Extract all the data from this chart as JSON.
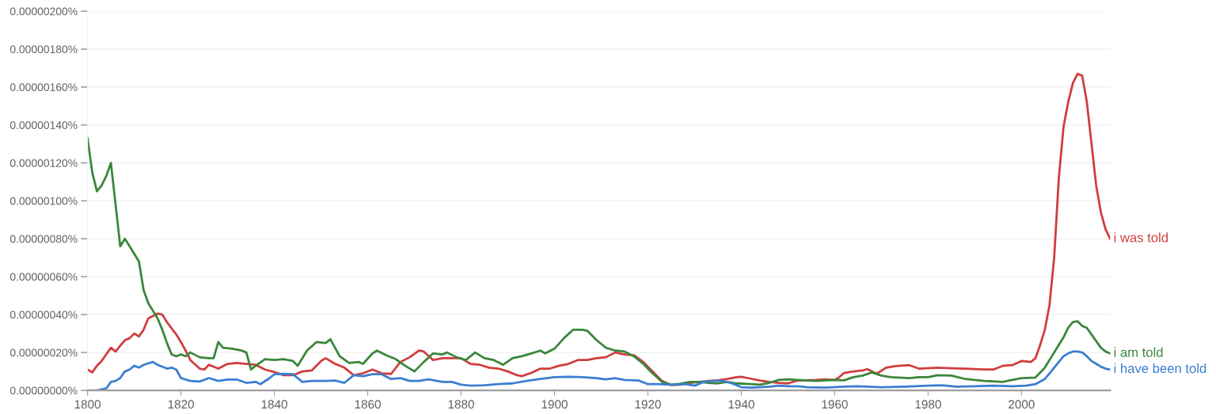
{
  "chart_data": {
    "type": "line",
    "xlim": [
      1800,
      2019
    ],
    "ylim": [
      0,
      2e-06
    ],
    "xticks": [
      1800,
      1820,
      1840,
      1860,
      1880,
      1900,
      1920,
      1940,
      1960,
      1980,
      2000
    ],
    "yticks": [
      {
        "value": 0,
        "label": "0.00000000%"
      },
      {
        "value": 2e-07,
        "label": "0.00000020%"
      },
      {
        "value": 4e-07,
        "label": "0.00000040%"
      },
      {
        "value": 6e-07,
        "label": "0.00000060%"
      },
      {
        "value": 8e-07,
        "label": "0.00000080%"
      },
      {
        "value": 1e-06,
        "label": "0.00000100%"
      },
      {
        "value": 1.2e-06,
        "label": "0.00000120%"
      },
      {
        "value": 1.4e-06,
        "label": "0.00000140%"
      },
      {
        "value": 1.6e-06,
        "label": "0.00000160%"
      },
      {
        "value": 1.8e-06,
        "label": "0.00000180%"
      },
      {
        "value": 2e-06,
        "label": "0.00000200%"
      }
    ],
    "grid": "y",
    "legend": false,
    "marker": "none",
    "line_style": "solid",
    "series": [
      {
        "name": "i was told",
        "color": "#d03d3d",
        "x": [
          1800,
          1801,
          1802,
          1803,
          1804,
          1805,
          1806,
          1807,
          1808,
          1809,
          1810,
          1811,
          1812,
          1813,
          1815,
          1816,
          1817,
          1819,
          1820,
          1821,
          1822,
          1824,
          1825,
          1826,
          1828,
          1830,
          1832,
          1834,
          1836,
          1838,
          1840,
          1842,
          1844,
          1846,
          1848,
          1850,
          1851,
          1853,
          1855,
          1857,
          1859,
          1861,
          1863,
          1865,
          1867,
          1869,
          1871,
          1872,
          1874,
          1876,
          1878,
          1880,
          1882,
          1884,
          1886,
          1888,
          1890,
          1892,
          1893,
          1895,
          1897,
          1899,
          1901,
          1903,
          1905,
          1907,
          1909,
          1911,
          1913,
          1915,
          1917,
          1919,
          1921,
          1923,
          1925,
          1927,
          1929,
          1931,
          1933,
          1935,
          1937,
          1939,
          1940,
          1942,
          1944,
          1946,
          1948,
          1950,
          1952,
          1956,
          1958,
          1960,
          1961,
          1962,
          1964,
          1966,
          1967,
          1969,
          1971,
          1973,
          1976,
          1978,
          1982,
          1985,
          1988,
          1992,
          1994,
          1996,
          1998,
          2000,
          2002,
          2003,
          2004,
          2005,
          2006,
          2007,
          2008,
          2009,
          2010,
          2011,
          2012,
          2013,
          2014,
          2015,
          2016,
          2017,
          2018,
          2019
        ],
        "values": [
          1.1e-07,
          9.5e-08,
          1.3e-07,
          1.55e-07,
          1.9e-07,
          2.25e-07,
          2.05e-07,
          2.35e-07,
          2.65e-07,
          2.75e-07,
          3e-07,
          2.85e-07,
          3.2e-07,
          3.8e-07,
          4.05e-07,
          4e-07,
          3.6e-07,
          2.95e-07,
          2.55e-07,
          2.1e-07,
          1.6e-07,
          1.15e-07,
          1.1e-07,
          1.35e-07,
          1.15e-07,
          1.4e-07,
          1.45e-07,
          1.4e-07,
          1.35e-07,
          1.1e-07,
          9.7e-08,
          8e-08,
          8e-08,
          1e-07,
          1.05e-07,
          1.55e-07,
          1.7e-07,
          1.4e-07,
          1.2e-07,
          8e-08,
          9e-08,
          1.1e-07,
          9e-08,
          8.7e-08,
          1.5e-07,
          1.75e-07,
          2.1e-07,
          2.05e-07,
          1.6e-07,
          1.7e-07,
          1.7e-07,
          1.7e-07,
          1.4e-07,
          1.35e-07,
          1.2e-07,
          1.15e-07,
          1e-07,
          8e-08,
          7.5e-08,
          9.2e-08,
          1.15e-07,
          1.15e-07,
          1.3e-07,
          1.4e-07,
          1.6e-07,
          1.6e-07,
          1.7e-07,
          1.75e-07,
          2e-07,
          1.9e-07,
          1.85e-07,
          1.5e-07,
          1e-07,
          5e-08,
          2.8e-08,
          3e-08,
          4e-08,
          4.5e-08,
          5e-08,
          5.3e-08,
          6e-08,
          7e-08,
          7.2e-08,
          6.2e-08,
          5.2e-08,
          4.5e-08,
          4e-08,
          3.7e-08,
          5.2e-08,
          5.5e-08,
          5.8e-08,
          5.5e-08,
          7e-08,
          9.2e-08,
          1e-07,
          1.05e-07,
          1.12e-07,
          8.8e-08,
          1.2e-07,
          1.28e-07,
          1.33e-07,
          1.15e-07,
          1.2e-07,
          1.17e-07,
          1.15e-07,
          1.1e-07,
          1.1e-07,
          1.3e-07,
          1.33e-07,
          1.55e-07,
          1.5e-07,
          1.7e-07,
          2.4e-07,
          3.2e-07,
          4.5e-07,
          7e-07,
          1.12e-06,
          1.39e-06,
          1.52e-06,
          1.62e-06,
          1.67e-06,
          1.66e-06,
          1.52e-06,
          1.3e-06,
          1.08e-06,
          9.4e-07,
          8.5e-07,
          8e-07
        ]
      },
      {
        "name": "i am told",
        "color": "#3b863b",
        "x": [
          1800,
          1801,
          1802,
          1803,
          1804,
          1805,
          1806,
          1807,
          1808,
          1810,
          1811,
          1812,
          1813,
          1814,
          1815,
          1816,
          1817,
          1818,
          1819,
          1820,
          1821,
          1822,
          1824,
          1826,
          1827,
          1828,
          1829,
          1831,
          1833,
          1834,
          1835,
          1836,
          1838,
          1840,
          1842,
          1844,
          1845,
          1847,
          1849,
          1851,
          1852,
          1854,
          1856,
          1858,
          1859,
          1861,
          1862,
          1864,
          1866,
          1868,
          1870,
          1872,
          1874,
          1876,
          1877,
          1879,
          1881,
          1883,
          1885,
          1887,
          1889,
          1891,
          1893,
          1895,
          1897,
          1898,
          1900,
          1902,
          1904,
          1906,
          1907,
          1909,
          1911,
          1913,
          1915,
          1917,
          1919,
          1921,
          1923,
          1925,
          1927,
          1929,
          1931,
          1933,
          1935,
          1937,
          1939,
          1942,
          1944,
          1946,
          1948,
          1950,
          1952,
          1956,
          1960,
          1962,
          1964,
          1966,
          1968,
          1970,
          1972,
          1976,
          1978,
          1980,
          1982,
          1985,
          1988,
          1992,
          1996,
          1998,
          2000,
          2003,
          2005,
          2007,
          2008,
          2009,
          2010,
          2011,
          2012,
          2013,
          2014,
          2015,
          2016,
          2017,
          2018,
          2019
        ],
        "values": [
          1.33e-06,
          1.15e-06,
          1.05e-06,
          1.08e-06,
          1.13e-06,
          1.2e-06,
          9.8e-07,
          7.6e-07,
          8e-07,
          7.2e-07,
          6.8e-07,
          5.3e-07,
          4.6e-07,
          4.2e-07,
          3.8e-07,
          3.2e-07,
          2.5e-07,
          1.9e-07,
          1.8e-07,
          1.9e-07,
          1.8e-07,
          2e-07,
          1.75e-07,
          1.7e-07,
          1.7e-07,
          2.55e-07,
          2.25e-07,
          2.2e-07,
          2.1e-07,
          2e-07,
          1.1e-07,
          1.3e-07,
          1.65e-07,
          1.6e-07,
          1.65e-07,
          1.55e-07,
          1.3e-07,
          2.1e-07,
          2.55e-07,
          2.5e-07,
          2.7e-07,
          1.8e-07,
          1.45e-07,
          1.5e-07,
          1.4e-07,
          1.95e-07,
          2.1e-07,
          1.85e-07,
          1.65e-07,
          1.3e-07,
          1e-07,
          1.5e-07,
          1.95e-07,
          1.9e-07,
          2e-07,
          1.75e-07,
          1.6e-07,
          2e-07,
          1.7e-07,
          1.6e-07,
          1.35e-07,
          1.7e-07,
          1.8e-07,
          1.95e-07,
          2.1e-07,
          1.95e-07,
          2.2e-07,
          2.75e-07,
          3.2e-07,
          3.2e-07,
          3.15e-07,
          2.65e-07,
          2.25e-07,
          2.1e-07,
          2.05e-07,
          1.8e-07,
          1.4e-07,
          9e-08,
          4.5e-08,
          3e-08,
          3.5e-08,
          4.5e-08,
          4.5e-08,
          4e-08,
          3.7e-08,
          4.5e-08,
          3.7e-08,
          3.3e-08,
          3e-08,
          4e-08,
          5.5e-08,
          5.8e-08,
          5.5e-08,
          5e-08,
          5.5e-08,
          5.3e-08,
          7e-08,
          7.8e-08,
          9.5e-08,
          7.8e-08,
          7e-08,
          6.5e-08,
          7e-08,
          7e-08,
          8e-08,
          7.8e-08,
          6e-08,
          5e-08,
          4.5e-08,
          5.5e-08,
          6.5e-08,
          6.8e-08,
          1.2e-07,
          2e-07,
          2.4e-07,
          2.8e-07,
          3.3e-07,
          3.6e-07,
          3.65e-07,
          3.4e-07,
          3.3e-07,
          2.95e-07,
          2.6e-07,
          2.25e-07,
          2.05e-07,
          1.95e-07
        ]
      },
      {
        "name": "i have been told",
        "color": "#3a7fd0",
        "x": [
          1800,
          1802,
          1804,
          1805,
          1806,
          1807,
          1808,
          1809,
          1810,
          1811,
          1812,
          1814,
          1815,
          1817,
          1818,
          1819,
          1820,
          1822,
          1824,
          1826,
          1828,
          1830,
          1832,
          1834,
          1836,
          1837,
          1839,
          1840,
          1842,
          1844,
          1846,
          1848,
          1851,
          1853,
          1855,
          1857,
          1859,
          1861,
          1863,
          1865,
          1867,
          1869,
          1871,
          1873,
          1876,
          1878,
          1880,
          1882,
          1885,
          1888,
          1891,
          1894,
          1897,
          1900,
          1903,
          1906,
          1909,
          1911,
          1913,
          1915,
          1918,
          1920,
          1922,
          1925,
          1928,
          1930,
          1932,
          1934,
          1936,
          1938,
          1940,
          1942,
          1944,
          1946,
          1948,
          1950,
          1952,
          1954,
          1958,
          1962,
          1965,
          1970,
          1975,
          1980,
          1983,
          1986,
          1990,
          1994,
          1998,
          2001,
          2003,
          2005,
          2006,
          2007,
          2008,
          2009,
          2010,
          2011,
          2012,
          2013,
          2014,
          2015,
          2016,
          2017,
          2018,
          2019
        ],
        "values": [
          0,
          0,
          1e-08,
          4.5e-08,
          5e-08,
          6.5e-08,
          1e-07,
          1.1e-07,
          1.3e-07,
          1.2e-07,
          1.35e-07,
          1.5e-07,
          1.35e-07,
          1.15e-07,
          1.2e-07,
          1.1e-07,
          6.5e-08,
          5e-08,
          4.7e-08,
          6.5e-08,
          5e-08,
          5.7e-08,
          5.7e-08,
          4e-08,
          4.5e-08,
          3.3e-08,
          6.5e-08,
          8.5e-08,
          8.7e-08,
          8.5e-08,
          4.5e-08,
          5e-08,
          5e-08,
          5.2e-08,
          4e-08,
          8e-08,
          7.5e-08,
          8.5e-08,
          8.5e-08,
          6e-08,
          6.5e-08,
          5e-08,
          5e-08,
          5.8e-08,
          4.5e-08,
          4.5e-08,
          3e-08,
          2.5e-08,
          2.7e-08,
          3.3e-08,
          3.7e-08,
          5e-08,
          6e-08,
          7e-08,
          7.2e-08,
          7e-08,
          6.5e-08,
          5.8e-08,
          6.5e-08,
          5.5e-08,
          5.2e-08,
          3.3e-08,
          3.3e-08,
          3e-08,
          3.3e-08,
          2.5e-08,
          4.5e-08,
          5e-08,
          5e-08,
          3.7e-08,
          1.7e-08,
          1.5e-08,
          1.7e-08,
          2e-08,
          2.5e-08,
          2.2e-08,
          2.2e-08,
          1.7e-08,
          1.5e-08,
          2e-08,
          2.2e-08,
          1.7e-08,
          2e-08,
          2.5e-08,
          2.7e-08,
          2e-08,
          2.2e-08,
          2.5e-08,
          2.2e-08,
          2.5e-08,
          3.3e-08,
          6e-08,
          9e-08,
          1.2e-07,
          1.5e-07,
          1.8e-07,
          1.95e-07,
          2.05e-07,
          2.05e-07,
          2e-07,
          1.8e-07,
          1.55e-07,
          1.4e-07,
          1.25e-07,
          1.15e-07,
          1.1e-07
        ]
      }
    ]
  }
}
